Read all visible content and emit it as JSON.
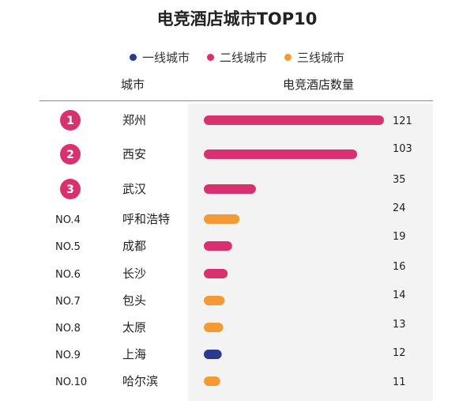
{
  "chart_data": {
    "type": "bar",
    "title": "电竞酒店城市TOP10",
    "column_headers": {
      "city": "城市",
      "value": "电竞酒店数量"
    },
    "legend_position": "top-center",
    "tiers": [
      {
        "id": "tier1",
        "name": "一线城市",
        "color": "#2b3a8f"
      },
      {
        "id": "tier2",
        "name": "二线城市",
        "color": "#d9306f"
      },
      {
        "id": "tier3",
        "name": "三线城市",
        "color": "#f39a34"
      }
    ],
    "rows": [
      {
        "rank_label": "1",
        "rank_badge": true,
        "city": "郑州",
        "value": 121,
        "tier": "tier2"
      },
      {
        "rank_label": "2",
        "rank_badge": true,
        "city": "西安",
        "value": 103,
        "tier": "tier2"
      },
      {
        "rank_label": "3",
        "rank_badge": true,
        "city": "武汉",
        "value": 35,
        "tier": "tier2"
      },
      {
        "rank_label": "NO.4",
        "rank_badge": false,
        "city": "呼和浩特",
        "value": 24,
        "tier": "tier3"
      },
      {
        "rank_label": "NO.5",
        "rank_badge": false,
        "city": "成都",
        "value": 19,
        "tier": "tier2"
      },
      {
        "rank_label": "NO.6",
        "rank_badge": false,
        "city": "长沙",
        "value": 16,
        "tier": "tier2"
      },
      {
        "rank_label": "NO.7",
        "rank_badge": false,
        "city": "包头",
        "value": 14,
        "tier": "tier3"
      },
      {
        "rank_label": "NO.8",
        "rank_badge": false,
        "city": "太原",
        "value": 13,
        "tier": "tier3"
      },
      {
        "rank_label": "NO.9",
        "rank_badge": false,
        "city": "上海",
        "value": 12,
        "tier": "tier1"
      },
      {
        "rank_label": "NO.10",
        "rank_badge": false,
        "city": "哈尔滨",
        "value": 11,
        "tier": "tier3"
      }
    ],
    "xlim": [
      0,
      121
    ],
    "grid": false
  }
}
